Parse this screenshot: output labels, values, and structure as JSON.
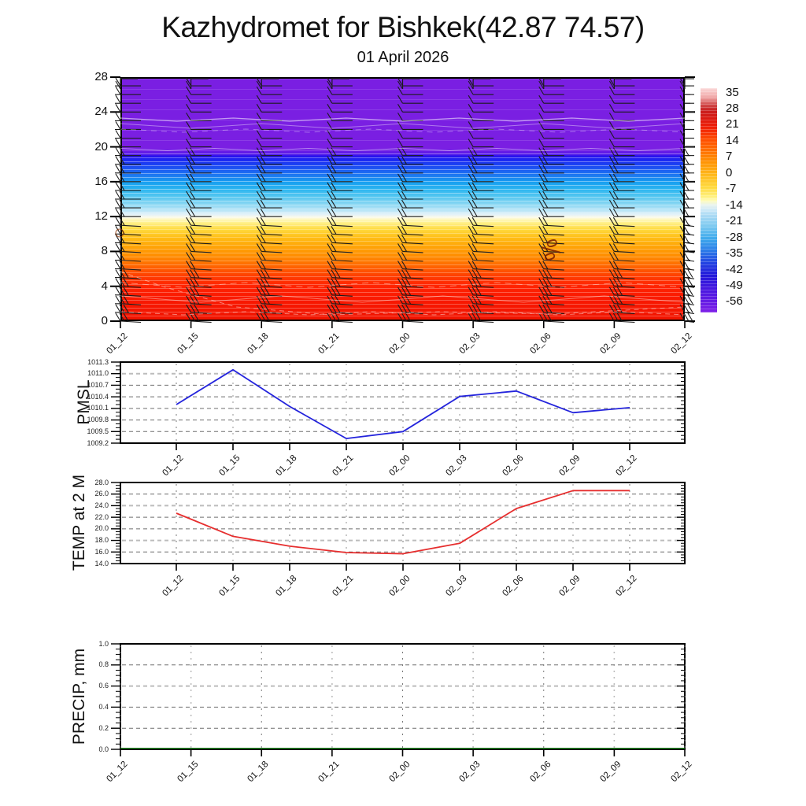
{
  "header": {
    "title": "Kazhydromet for Bishkek(42.87 74.57)",
    "subtitle": "01 April 2026"
  },
  "time_labels": [
    "01_12",
    "01_15",
    "01_18",
    "01_21",
    "02_00",
    "02_03",
    "02_06",
    "02_09",
    "02_12"
  ],
  "chart_data": [
    {
      "type": "heatmap",
      "name": "temperature-height-cross-section",
      "x": [
        "01_12",
        "01_15",
        "01_18",
        "01_21",
        "02_00",
        "02_03",
        "02_06",
        "02_09",
        "02_12"
      ],
      "ylabel": "",
      "ylim": [
        0,
        28
      ],
      "y_ticks": [
        "0",
        "4",
        "8",
        "12",
        "16",
        "20",
        "24",
        "28"
      ],
      "legend_position": "right-colorbar",
      "colorbar_ticks": [
        "35",
        "28",
        "21",
        "14",
        "7",
        "0",
        "-7",
        "-14",
        "-21",
        "-28",
        "-35",
        "-42",
        "-49",
        "-56"
      ],
      "colormap_stops": [
        [
          0,
          "#fbd8d8"
        ],
        [
          0.04,
          "#f0a8a8"
        ],
        [
          0.075,
          "#d04848"
        ],
        [
          0.1,
          "#c81e1e"
        ],
        [
          0.14,
          "#dd1a10"
        ],
        [
          0.175,
          "#ef2008"
        ],
        [
          0.23,
          "#ff4e00"
        ],
        [
          0.275,
          "#ff6e00"
        ],
        [
          0.33,
          "#ff9404"
        ],
        [
          0.385,
          "#ffb81c"
        ],
        [
          0.44,
          "#ffd83c"
        ],
        [
          0.48,
          "#ffee78"
        ],
        [
          0.5,
          "#fffbb4"
        ],
        [
          0.52,
          "#eaf4ee"
        ],
        [
          0.545,
          "#cbe8f7"
        ],
        [
          0.56,
          "#b2ddf5"
        ],
        [
          0.615,
          "#7cc9f0"
        ],
        [
          0.67,
          "#3faaec"
        ],
        [
          0.725,
          "#2b7be8"
        ],
        [
          0.78,
          "#2342e2"
        ],
        [
          0.835,
          "#2318da"
        ],
        [
          0.9,
          "#4a18e0"
        ],
        [
          1,
          "#7f20e8"
        ]
      ],
      "field_gradient_stops": [
        [
          0,
          "#7a1fe2"
        ],
        [
          0.29,
          "#7a1fe2"
        ],
        [
          0.312,
          "#5a18e8"
        ],
        [
          0.323,
          "#2212ee"
        ],
        [
          0.34,
          "#1b2cf2"
        ],
        [
          0.36,
          "#1b46f2"
        ],
        [
          0.385,
          "#1c64f2"
        ],
        [
          0.41,
          "#1c84f0"
        ],
        [
          0.43,
          "#18a0f0"
        ],
        [
          0.46,
          "#2eb6f0"
        ],
        [
          0.49,
          "#54c6f0"
        ],
        [
          0.52,
          "#86d6f3"
        ],
        [
          0.548,
          "#bce6f7"
        ],
        [
          0.565,
          "#e6f3f9"
        ],
        [
          0.578,
          "#fdfadc"
        ],
        [
          0.595,
          "#fff394"
        ],
        [
          0.625,
          "#ffda3e"
        ],
        [
          0.66,
          "#ffbd16"
        ],
        [
          0.7,
          "#ffa206"
        ],
        [
          0.74,
          "#ff8a00"
        ],
        [
          0.78,
          "#ff6300"
        ],
        [
          0.82,
          "#ff3d00"
        ],
        [
          0.86,
          "#ff2400"
        ],
        [
          0.92,
          "#f91800"
        ],
        [
          1,
          "#f01400"
        ]
      ],
      "annotations": {
        "contour_label_symbol": "%"
      },
      "wind_barbs": "black wind barbs at each of the 9 time columns, heights 0-28"
    },
    {
      "type": "line",
      "ylabel": "PMSL",
      "color": "#2424dc",
      "x": [
        "01_12",
        "01_15",
        "01_18",
        "01_21",
        "02_00",
        "02_03",
        "02_06",
        "02_09",
        "02_12"
      ],
      "values": [
        1010.2,
        1011.1,
        1010.15,
        1009.32,
        1009.5,
        1010.41,
        1010.55,
        1009.99,
        1010.12
      ],
      "ylim": [
        1009.2,
        1011.3
      ],
      "y_ticks": [
        "1011.3",
        "1011.0",
        "1010.7",
        "1010.4",
        "1010.1",
        "1009.8",
        "1009.5",
        "1009.2"
      ],
      "grid": true
    },
    {
      "type": "line",
      "ylabel": "TEMP at 2 M",
      "color": "#e62e2e",
      "x": [
        "01_12",
        "01_15",
        "01_18",
        "01_21",
        "02_00",
        "02_03",
        "02_06",
        "02_09",
        "02_12"
      ],
      "values": [
        22.7,
        18.7,
        17.0,
        15.9,
        15.7,
        17.5,
        23.5,
        26.6,
        26.6
      ],
      "ylim": [
        14.0,
        28.0
      ],
      "y_ticks": [
        "28.0",
        "26.0",
        "24.0",
        "22.0",
        "20.0",
        "18.0",
        "16.0",
        "14.0"
      ],
      "grid": true
    },
    {
      "type": "line",
      "ylabel": "PRECIP, mm",
      "color": "#0a600a",
      "x": [
        "01_12",
        "01_15",
        "01_18",
        "01_21",
        "02_00",
        "02_03",
        "02_06",
        "02_09",
        "02_12"
      ],
      "values": [
        0.0,
        0.0,
        0.0,
        0.0,
        0.0,
        0.0,
        0.0,
        0.0,
        0.0
      ],
      "ylim": [
        0.0,
        1.0
      ],
      "y_ticks": [
        "1.0",
        "0.8",
        "0.6",
        "0.4",
        "0.2",
        "0.0"
      ],
      "grid": true
    }
  ]
}
